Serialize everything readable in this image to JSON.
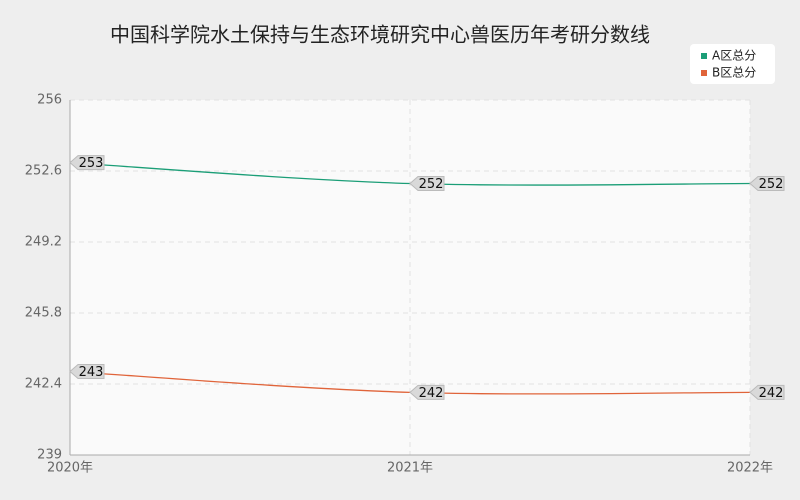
{
  "chart_data": {
    "type": "line",
    "title": "中国科学院水土保持与生态环境研究中心兽医历年考研分数线",
    "categories": [
      "2020年",
      "2021年",
      "2022年"
    ],
    "series": [
      {
        "name": "A区总分",
        "color": "#1b9e77",
        "values": [
          253,
          252,
          252
        ]
      },
      {
        "name": "B区总分",
        "color": "#e0643a",
        "values": [
          243,
          242,
          242
        ]
      }
    ],
    "ylim": [
      239,
      256
    ],
    "yticks": [
      239,
      242.4,
      245.8,
      249.2,
      252.6,
      256
    ],
    "grid": true,
    "legend": "top-right"
  }
}
